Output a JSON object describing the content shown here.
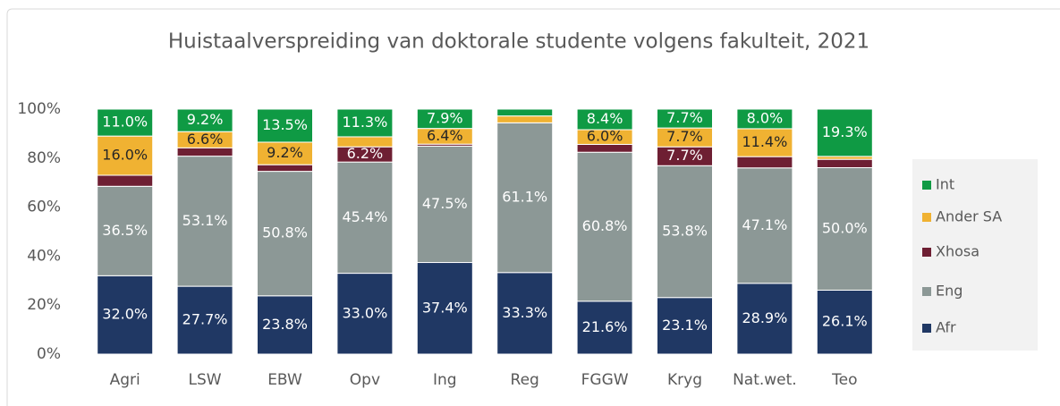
{
  "chart_data": {
    "type": "stacked-bar",
    "title": "Huistaalverspreiding van doktorale studente volgens fakulteit, 2021",
    "categories": [
      "Agri",
      "LSW",
      "EBW",
      "Opv",
      "Ing",
      "Reg",
      "FGGW",
      "Kryg",
      "Nat.wet.",
      "Teo"
    ],
    "series": [
      {
        "name": "Afr",
        "color": "#203864",
        "label_color": "#ffffff",
        "values": [
          32.0,
          27.7,
          23.8,
          33.0,
          37.4,
          33.3,
          21.6,
          23.1,
          28.9,
          26.1
        ],
        "value_labels": [
          "32.0%",
          "27.7%",
          "23.8%",
          "33.0%",
          "37.4%",
          "33.3%",
          "21.6%",
          "23.1%",
          "28.9%",
          "26.1%"
        ]
      },
      {
        "name": "Eng",
        "color": "#8c9896",
        "label_color": "#ffffff",
        "values": [
          36.5,
          53.1,
          50.8,
          45.4,
          47.5,
          61.1,
          60.8,
          53.8,
          47.1,
          50.0
        ],
        "value_labels": [
          "36.5%",
          "53.1%",
          "50.8%",
          "45.4%",
          "47.5%",
          "61.1%",
          "60.8%",
          "53.8%",
          "47.1%",
          "50.0%"
        ]
      },
      {
        "name": "Xhosa",
        "color": "#6e1f33",
        "label_color": "#ffffff",
        "values": [
          4.5,
          3.4,
          2.7,
          6.2,
          0.8,
          0,
          3.2,
          7.7,
          4.6,
          3.4
        ],
        "value_labels": [
          null,
          null,
          null,
          "6.2%",
          null,
          null,
          null,
          "7.7%",
          null,
          null
        ]
      },
      {
        "name": "Ander SA",
        "color": "#f0b232",
        "label_color": "#262626",
        "values": [
          16.0,
          6.6,
          9.2,
          4.1,
          6.4,
          2.8,
          6.0,
          7.7,
          11.4,
          1.2
        ],
        "value_labels": [
          "16.0%",
          "6.6%",
          "9.2%",
          null,
          "6.4%",
          null,
          "6.0%",
          "7.7%",
          "11.4%",
          null
        ]
      },
      {
        "name": "Int",
        "color": "#0f9a44",
        "label_color": "#ffffff",
        "values": [
          11.0,
          9.2,
          13.5,
          11.3,
          7.9,
          2.8,
          8.4,
          7.7,
          8.0,
          19.3
        ],
        "value_labels": [
          "11.0%",
          "9.2%",
          "13.5%",
          "11.3%",
          "7.9%",
          null,
          "8.4%",
          "7.7%",
          "8.0%",
          "19.3%"
        ]
      }
    ],
    "ylim": [
      0,
      100
    ],
    "yticks": [
      {
        "value": 0,
        "label": "0%"
      },
      {
        "value": 20,
        "label": "20%"
      },
      {
        "value": 40,
        "label": "40%"
      },
      {
        "value": 60,
        "label": "60%"
      },
      {
        "value": 80,
        "label": "80%"
      },
      {
        "value": 100,
        "label": "100%"
      }
    ],
    "grid": false,
    "legend": "right"
  }
}
